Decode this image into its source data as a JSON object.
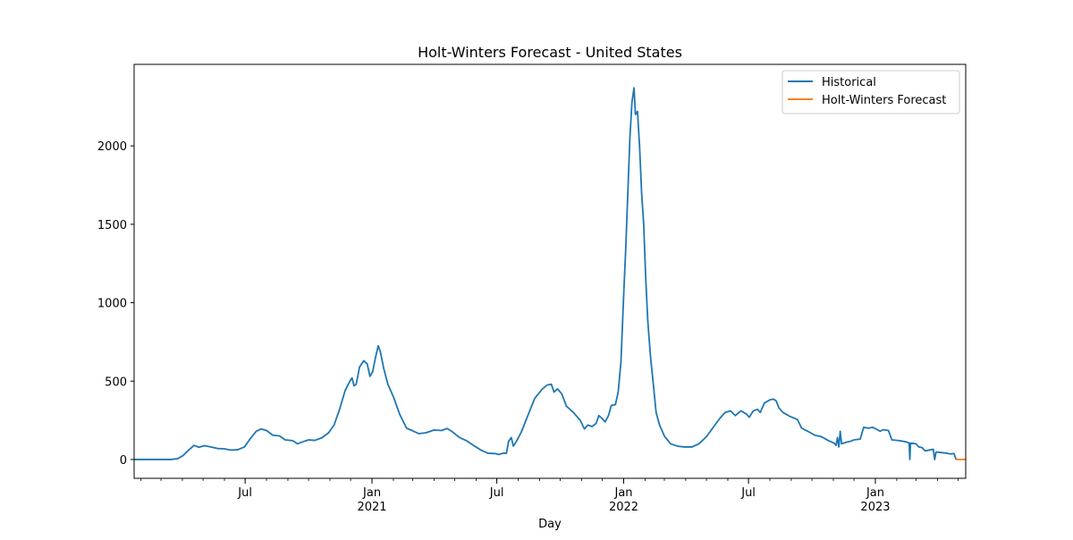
{
  "chart_data": {
    "type": "line",
    "title": "Holt-Winters Forecast - United States",
    "xlabel": "Day",
    "ylabel": "",
    "x_range": [
      "2020-01-22",
      "2023-05-12"
    ],
    "ylim": [
      -120,
      2520
    ],
    "grid": false,
    "legend_position": "top-right",
    "y_ticks": [
      0,
      500,
      1000,
      1500,
      2000
    ],
    "x_major_ticks": [
      {
        "date": "2020-07-01",
        "label": "Jul",
        "sublabel": ""
      },
      {
        "date": "2021-01-01",
        "label": "Jan",
        "sublabel": "2021"
      },
      {
        "date": "2021-07-01",
        "label": "Jul",
        "sublabel": ""
      },
      {
        "date": "2022-01-01",
        "label": "Jan",
        "sublabel": "2022"
      },
      {
        "date": "2022-07-01",
        "label": "Jul",
        "sublabel": ""
      },
      {
        "date": "2023-01-01",
        "label": "Jan",
        "sublabel": "2023"
      }
    ],
    "series": [
      {
        "name": "Historical",
        "color": "#1f77b4",
        "points": [
          [
            "2020-01-22",
            0
          ],
          [
            "2020-02-15",
            0
          ],
          [
            "2020-03-01",
            0
          ],
          [
            "2020-03-15",
            0
          ],
          [
            "2020-03-25",
            5
          ],
          [
            "2020-04-02",
            25
          ],
          [
            "2020-04-10",
            60
          ],
          [
            "2020-04-18",
            90
          ],
          [
            "2020-04-25",
            78
          ],
          [
            "2020-05-03",
            88
          ],
          [
            "2020-05-12",
            80
          ],
          [
            "2020-05-22",
            70
          ],
          [
            "2020-06-01",
            68
          ],
          [
            "2020-06-10",
            60
          ],
          [
            "2020-06-20",
            62
          ],
          [
            "2020-06-30",
            80
          ],
          [
            "2020-07-08",
            130
          ],
          [
            "2020-07-17",
            180
          ],
          [
            "2020-07-24",
            195
          ],
          [
            "2020-08-01",
            185
          ],
          [
            "2020-08-10",
            155
          ],
          [
            "2020-08-20",
            150
          ],
          [
            "2020-08-28",
            125
          ],
          [
            "2020-09-08",
            120
          ],
          [
            "2020-09-15",
            100
          ],
          [
            "2020-09-22",
            112
          ],
          [
            "2020-10-01",
            125
          ],
          [
            "2020-10-10",
            122
          ],
          [
            "2020-10-20",
            138
          ],
          [
            "2020-10-30",
            170
          ],
          [
            "2020-11-07",
            220
          ],
          [
            "2020-11-15",
            320
          ],
          [
            "2020-11-23",
            440
          ],
          [
            "2020-11-30",
            500
          ],
          [
            "2020-12-03",
            520
          ],
          [
            "2020-12-06",
            470
          ],
          [
            "2020-12-09",
            480
          ],
          [
            "2020-12-14",
            590
          ],
          [
            "2020-12-20",
            630
          ],
          [
            "2020-12-25",
            610
          ],
          [
            "2020-12-29",
            530
          ],
          [
            "2021-01-02",
            560
          ],
          [
            "2021-01-06",
            650
          ],
          [
            "2021-01-10",
            725
          ],
          [
            "2021-01-13",
            690
          ],
          [
            "2021-01-18",
            580
          ],
          [
            "2021-01-24",
            480
          ],
          [
            "2021-02-01",
            400
          ],
          [
            "2021-02-10",
            290
          ],
          [
            "2021-02-20",
            200
          ],
          [
            "2021-02-28",
            185
          ],
          [
            "2021-03-10",
            165
          ],
          [
            "2021-03-20",
            170
          ],
          [
            "2021-04-01",
            188
          ],
          [
            "2021-04-12",
            185
          ],
          [
            "2021-04-20",
            198
          ],
          [
            "2021-04-28",
            175
          ],
          [
            "2021-05-08",
            140
          ],
          [
            "2021-05-18",
            120
          ],
          [
            "2021-05-28",
            90
          ],
          [
            "2021-06-08",
            60
          ],
          [
            "2021-06-18",
            40
          ],
          [
            "2021-06-28",
            38
          ],
          [
            "2021-07-04",
            32
          ],
          [
            "2021-07-10",
            40
          ],
          [
            "2021-07-15",
            40
          ],
          [
            "2021-07-18",
            115
          ],
          [
            "2021-07-22",
            140
          ],
          [
            "2021-07-25",
            85
          ],
          [
            "2021-07-30",
            120
          ],
          [
            "2021-08-06",
            180
          ],
          [
            "2021-08-15",
            280
          ],
          [
            "2021-08-25",
            390
          ],
          [
            "2021-09-05",
            450
          ],
          [
            "2021-09-12",
            475
          ],
          [
            "2021-09-18",
            480
          ],
          [
            "2021-09-22",
            430
          ],
          [
            "2021-09-27",
            450
          ],
          [
            "2021-10-03",
            420
          ],
          [
            "2021-10-10",
            340
          ],
          [
            "2021-10-20",
            300
          ],
          [
            "2021-10-30",
            250
          ],
          [
            "2021-11-05",
            195
          ],
          [
            "2021-11-10",
            220
          ],
          [
            "2021-11-16",
            210
          ],
          [
            "2021-11-22",
            230
          ],
          [
            "2021-11-26",
            280
          ],
          [
            "2021-12-01",
            260
          ],
          [
            "2021-12-05",
            240
          ],
          [
            "2021-12-10",
            280
          ],
          [
            "2021-12-14",
            345
          ],
          [
            "2021-12-20",
            350
          ],
          [
            "2021-12-24",
            430
          ],
          [
            "2021-12-28",
            620
          ],
          [
            "2022-01-01",
            1050
          ],
          [
            "2022-01-04",
            1350
          ],
          [
            "2022-01-07",
            1700
          ],
          [
            "2022-01-10",
            2050
          ],
          [
            "2022-01-13",
            2280
          ],
          [
            "2022-01-16",
            2370
          ],
          [
            "2022-01-18",
            2200
          ],
          [
            "2022-01-21",
            2220
          ],
          [
            "2022-01-24",
            2000
          ],
          [
            "2022-01-27",
            1700
          ],
          [
            "2022-01-30",
            1500
          ],
          [
            "2022-02-02",
            1150
          ],
          [
            "2022-02-05",
            880
          ],
          [
            "2022-02-09",
            650
          ],
          [
            "2022-02-13",
            480
          ],
          [
            "2022-02-17",
            300
          ],
          [
            "2022-02-22",
            220
          ],
          [
            "2022-03-01",
            150
          ],
          [
            "2022-03-10",
            100
          ],
          [
            "2022-03-20",
            85
          ],
          [
            "2022-03-30",
            80
          ],
          [
            "2022-04-10",
            80
          ],
          [
            "2022-04-20",
            100
          ],
          [
            "2022-05-01",
            145
          ],
          [
            "2022-05-10",
            200
          ],
          [
            "2022-05-20",
            260
          ],
          [
            "2022-05-28",
            300
          ],
          [
            "2022-06-05",
            310
          ],
          [
            "2022-06-12",
            280
          ],
          [
            "2022-06-20",
            310
          ],
          [
            "2022-06-28",
            290
          ],
          [
            "2022-07-02",
            270
          ],
          [
            "2022-07-08",
            310
          ],
          [
            "2022-07-14",
            320
          ],
          [
            "2022-07-18",
            300
          ],
          [
            "2022-07-24",
            360
          ],
          [
            "2022-08-01",
            380
          ],
          [
            "2022-08-06",
            385
          ],
          [
            "2022-08-10",
            375
          ],
          [
            "2022-08-14",
            330
          ],
          [
            "2022-08-20",
            300
          ],
          [
            "2022-08-30",
            275
          ],
          [
            "2022-09-10",
            255
          ],
          [
            "2022-09-16",
            200
          ],
          [
            "2022-09-25",
            180
          ],
          [
            "2022-10-05",
            155
          ],
          [
            "2022-10-15",
            145
          ],
          [
            "2022-10-25",
            120
          ],
          [
            "2022-11-02",
            105
          ],
          [
            "2022-11-05",
            90
          ],
          [
            "2022-11-07",
            140
          ],
          [
            "2022-11-09",
            80
          ],
          [
            "2022-11-11",
            180
          ],
          [
            "2022-11-13",
            100
          ],
          [
            "2022-11-20",
            110
          ],
          [
            "2022-11-25",
            115
          ],
          [
            "2022-12-01",
            125
          ],
          [
            "2022-12-10",
            130
          ],
          [
            "2022-12-15",
            205
          ],
          [
            "2022-12-22",
            200
          ],
          [
            "2022-12-28",
            205
          ],
          [
            "2023-01-02",
            195
          ],
          [
            "2023-01-08",
            180
          ],
          [
            "2023-01-12",
            190
          ],
          [
            "2023-01-20",
            185
          ],
          [
            "2023-01-25",
            125
          ],
          [
            "2023-02-05",
            120
          ],
          [
            "2023-02-15",
            112
          ],
          [
            "2023-02-19",
            105
          ],
          [
            "2023-02-20",
            0
          ],
          [
            "2023-02-21",
            105
          ],
          [
            "2023-03-01",
            100
          ],
          [
            "2023-03-05",
            80
          ],
          [
            "2023-03-10",
            75
          ],
          [
            "2023-03-14",
            55
          ],
          [
            "2023-03-20",
            60
          ],
          [
            "2023-03-26",
            65
          ],
          [
            "2023-03-28",
            0
          ],
          [
            "2023-03-30",
            48
          ],
          [
            "2023-04-05",
            45
          ],
          [
            "2023-04-15",
            40
          ],
          [
            "2023-04-20",
            35
          ],
          [
            "2023-04-25",
            38
          ],
          [
            "2023-04-28",
            0
          ]
        ]
      },
      {
        "name": "Holt-Winters Forecast",
        "color": "#ff7f0e",
        "points": [
          [
            "2023-04-28",
            0
          ],
          [
            "2023-05-12",
            0
          ]
        ]
      }
    ]
  }
}
